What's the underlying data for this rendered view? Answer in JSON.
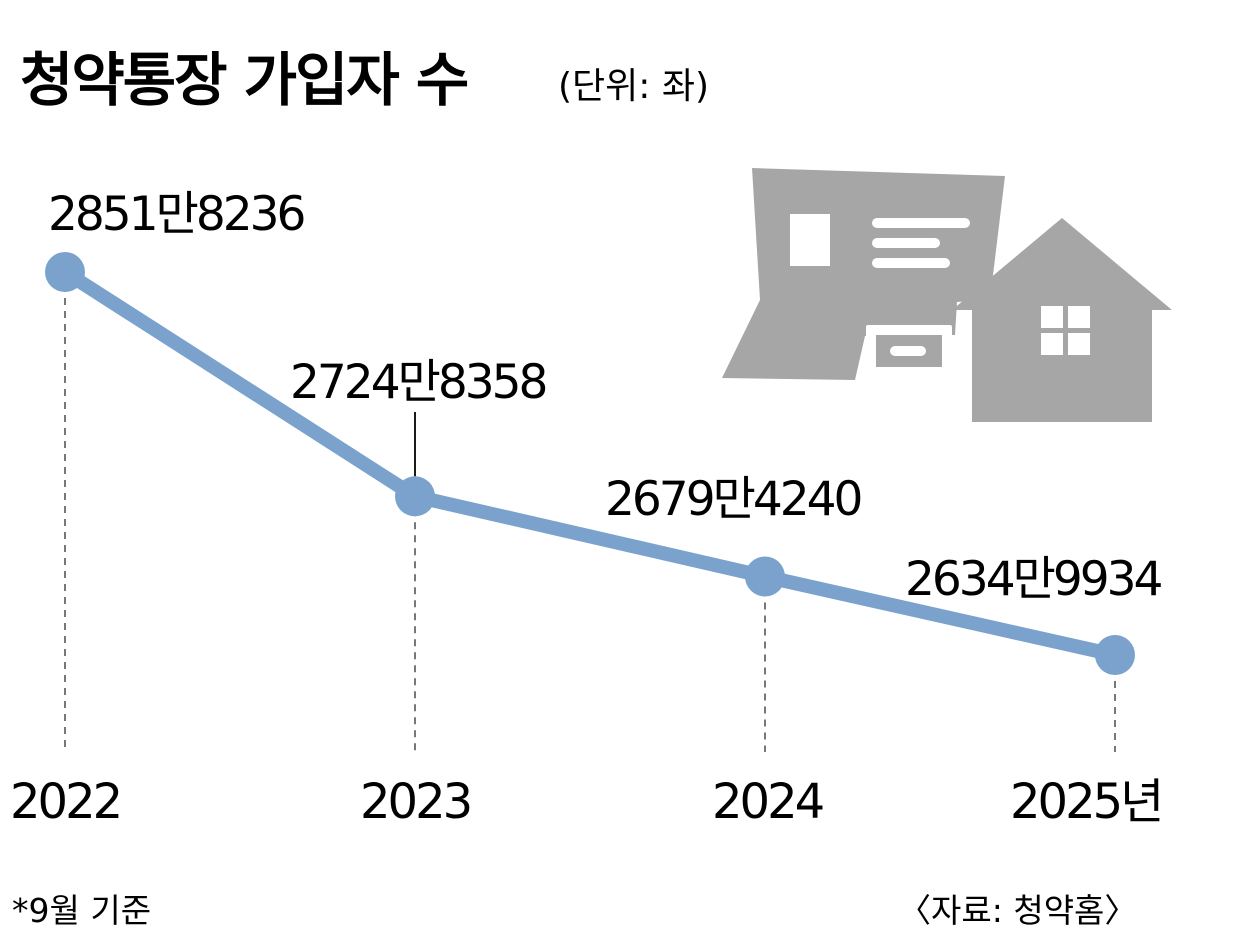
{
  "chart_data": {
    "type": "line",
    "title": "청약통장 가입자 수",
    "unit_note": "(단위: 좌)",
    "categories": [
      "2022",
      "2023",
      "2024",
      "2025년"
    ],
    "values": [
      28518236,
      27248358,
      26794240,
      26349934
    ],
    "value_labels": [
      "2851만8236",
      "2724만8358",
      "2679만4240",
      "2634만9934"
    ],
    "footnote": "*9월 기준",
    "source": "〈자료: 청약홈〉",
    "grid": false,
    "legend": "none",
    "colors": {
      "line": "#7aa2cc",
      "text": "#1a1a1a",
      "guide": "#777777",
      "icon": "#a6a6a6"
    },
    "icon": "document-and-house-icon"
  }
}
